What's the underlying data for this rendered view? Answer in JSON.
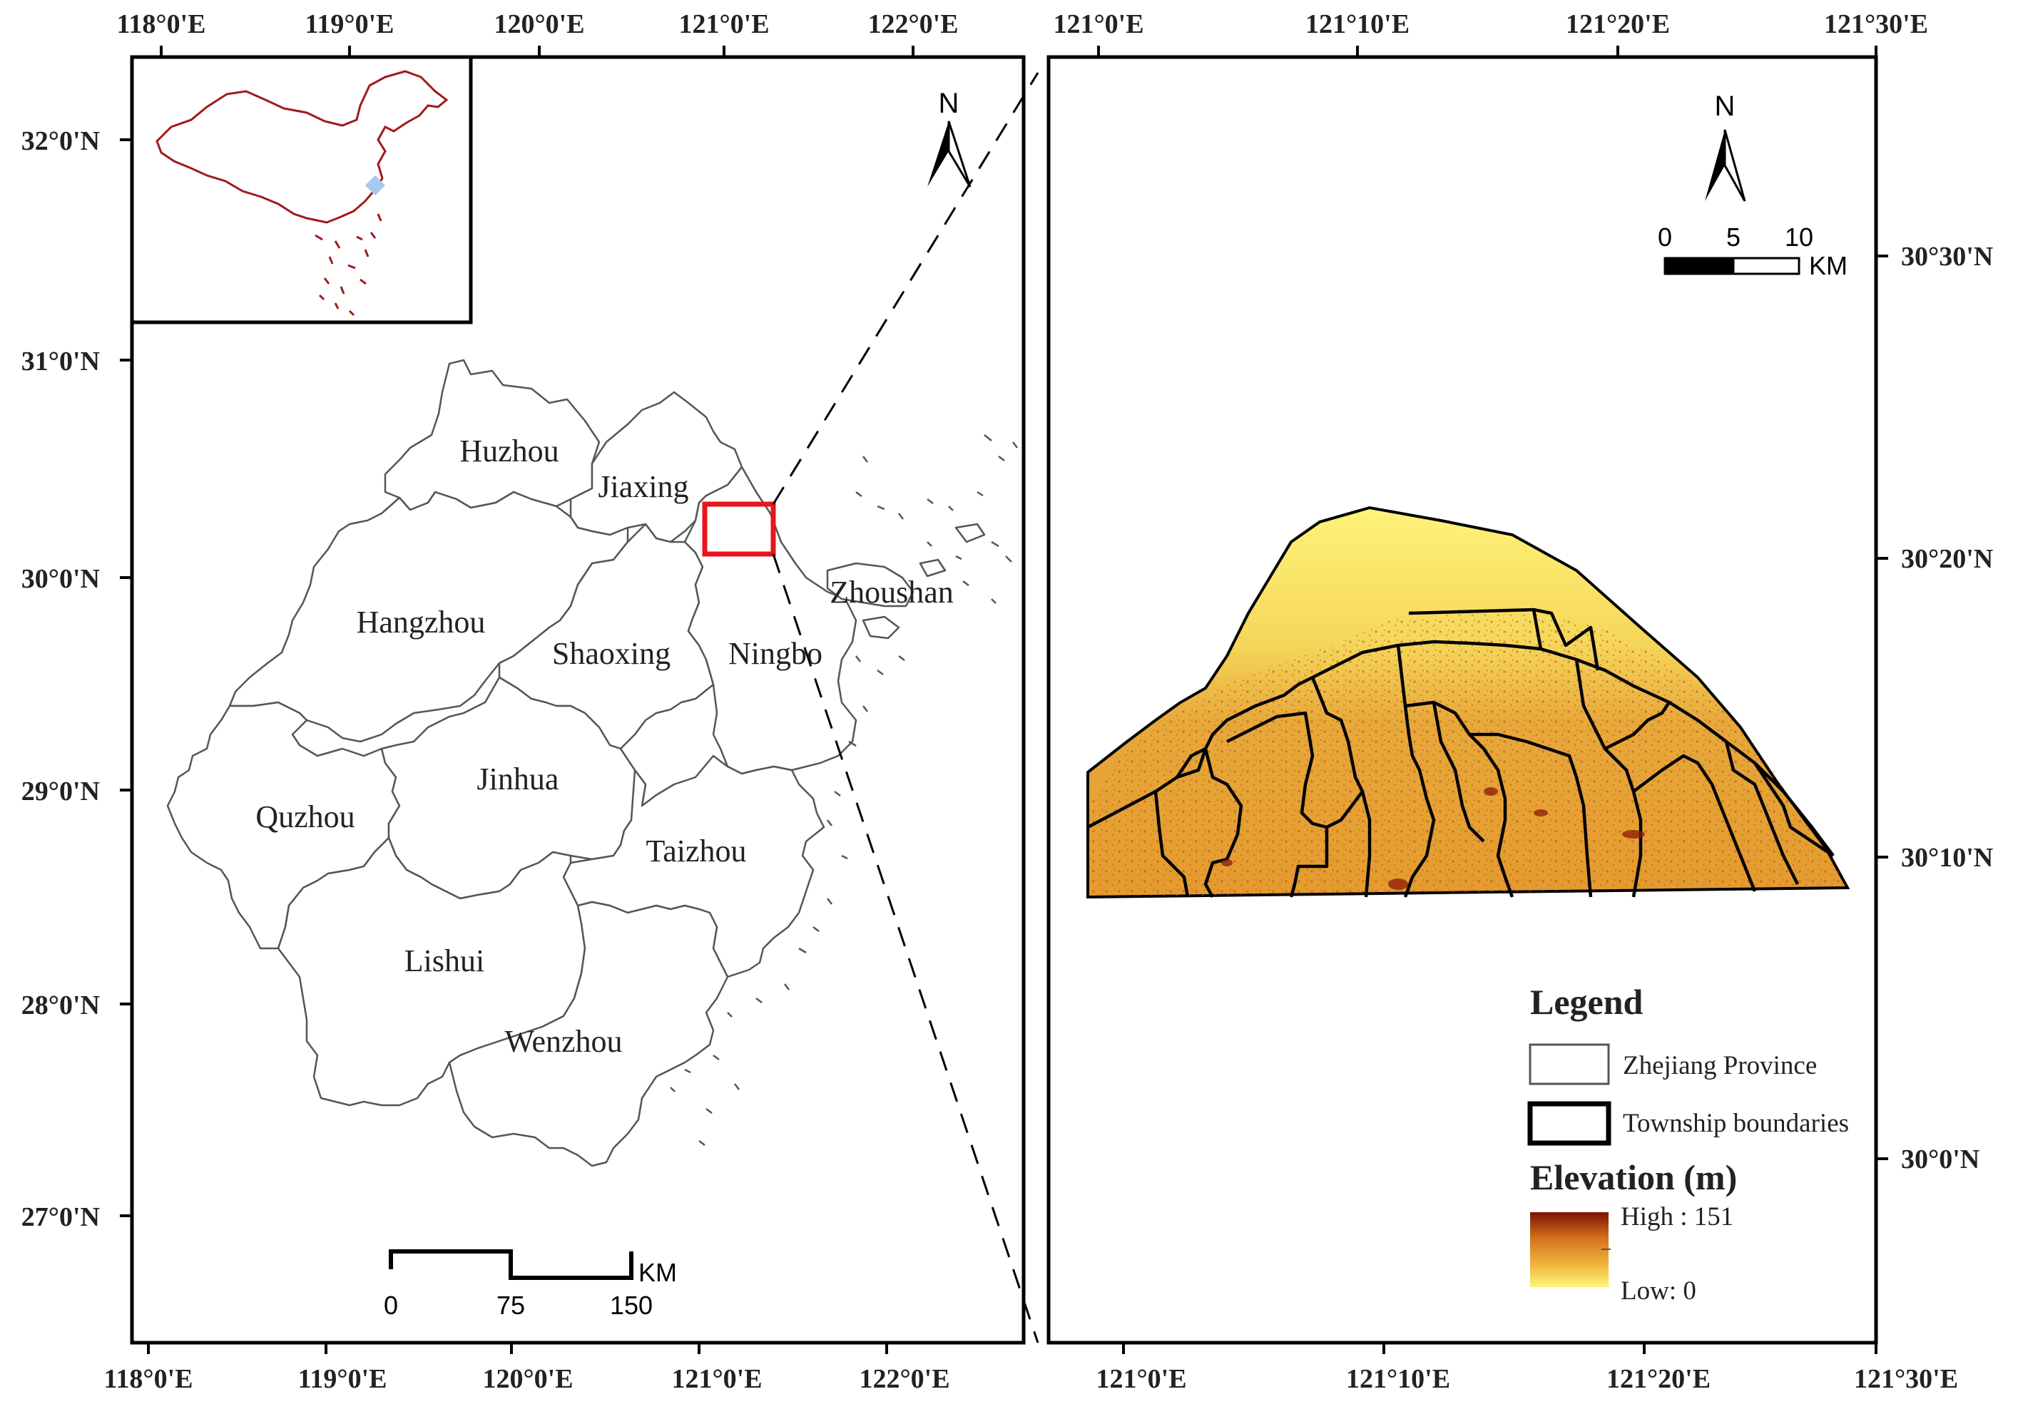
{
  "left_map": {
    "top_ticks": [
      "118°0'E",
      "119°0'E",
      "120°0'E",
      "121°0'E",
      "122°0'E"
    ],
    "bottom_ticks": [
      "118°0'E",
      "119°0'E",
      "120°0'E",
      "121°0'E",
      "122°0'E"
    ],
    "left_ticks": [
      "32°0'N",
      "31°0'N",
      "30°0'N",
      "29°0'N",
      "28°0'N",
      "27°0'N"
    ],
    "cities": [
      "Huzhou",
      "Jiaxing",
      "Hangzhou",
      "Shaoxing",
      "Ningbo",
      "Zhoushan",
      "Quzhou",
      "Jinhua",
      "Taizhou",
      "Lishui",
      "Wenzhou"
    ],
    "north_label": "N",
    "scale_labels": [
      "0",
      "75",
      "150"
    ],
    "scale_unit": "KM"
  },
  "right_map": {
    "top_ticks": [
      "121°0'E",
      "121°10'E",
      "121°20'E",
      "121°30'E"
    ],
    "bottom_ticks": [
      "121°0'E",
      "121°10'E",
      "121°20'E",
      "121°30'E"
    ],
    "right_ticks": [
      "30°30'N",
      "30°20'N",
      "30°10'N",
      "30°0'N"
    ],
    "north_label": "N",
    "scale_labels": [
      "0",
      "5",
      "10"
    ],
    "scale_unit": "KM"
  },
  "legend": {
    "title": "Legend",
    "items": [
      "Zhejiang Province",
      "Township boundaries"
    ],
    "elevation_title": "Elevation (m)",
    "high_label": "High : 151",
    "low_label": "Low: 0"
  },
  "colors": {
    "province_outline": "#555555",
    "china_outline": "#a01a1a",
    "highlight_box": "#e8141e",
    "elev_high": "#8b1a0a",
    "elev_mid": "#e8a030",
    "elev_low": "#fff080"
  }
}
